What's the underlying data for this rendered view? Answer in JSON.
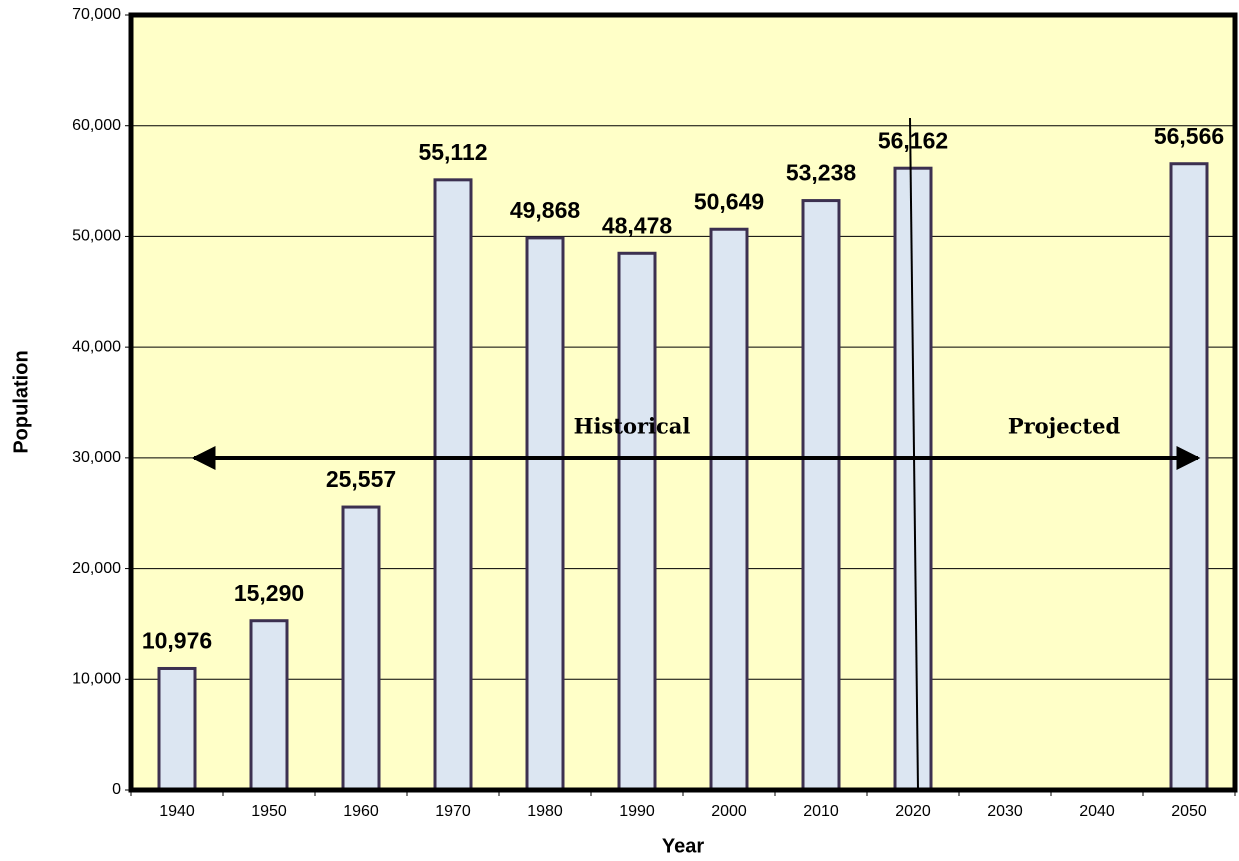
{
  "chart_data": {
    "type": "bar",
    "x_label": "Year",
    "y_label": "Population",
    "categories": [
      "1940",
      "1950",
      "1960",
      "1970",
      "1980",
      "1990",
      "2000",
      "2010",
      "2020",
      "2030",
      "2040",
      "2050"
    ],
    "values": [
      10976,
      15290,
      25557,
      55112,
      49868,
      48478,
      50649,
      53238,
      56162,
      null,
      null,
      56566
    ],
    "value_labels": [
      "10,976",
      "15,290",
      "25,557",
      "55,112",
      "49,868",
      "48,478",
      "50,649",
      "53,238",
      "56,162",
      null,
      null,
      "56,566"
    ],
    "color": "#dce6f2",
    "edge_color": "#3c3050",
    "background": "#ffffc8",
    "ylim": [
      0,
      70000
    ],
    "yticks": [
      0,
      {
        "value": 10000,
        "label": "10,000"
      },
      {
        "value": 20000,
        "label": "20,000"
      },
      {
        "value": 30000,
        "label": "30,000"
      },
      {
        "value": 40000,
        "label": "40,000"
      },
      {
        "value": 50000,
        "label": "50,000"
      },
      {
        "value": 60000,
        "label": "60,000"
      },
      {
        "value": 70000,
        "label": "70,000"
      }
    ],
    "grid": true,
    "annotations": [
      "Historical",
      "Projected"
    ]
  }
}
